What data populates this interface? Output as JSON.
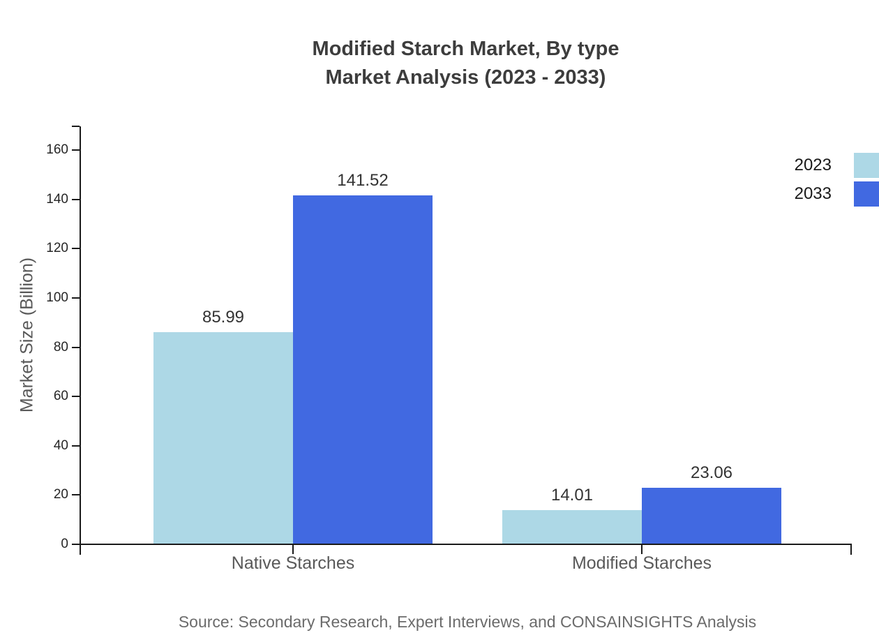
{
  "chart_data": {
    "type": "bar",
    "title_lines": [
      "Modified Starch Market, By type",
      "Market Analysis (2023 - 2033)"
    ],
    "categories": [
      "Native Starches",
      "Modified Starches"
    ],
    "series": [
      {
        "name": "2023",
        "color": "#ADD8E6",
        "values": [
          85.99,
          14.01
        ]
      },
      {
        "name": "2033",
        "color": "#4169E1",
        "values": [
          141.52,
          23.06
        ]
      }
    ],
    "value_label_format": "2dp",
    "xlabel": "",
    "ylabel": "Market Size (Billion)",
    "yticks": [
      0,
      20,
      40,
      60,
      80,
      100,
      120,
      140,
      160
    ],
    "ylim": [
      0,
      170
    ],
    "grid": false,
    "legend_position": "top-right",
    "axis_color": "#1a1a1a",
    "background_color": "#ffffff"
  },
  "source_note": "Source: Secondary Research, Expert Interviews, and CONSAINSIGHTS Analysis"
}
